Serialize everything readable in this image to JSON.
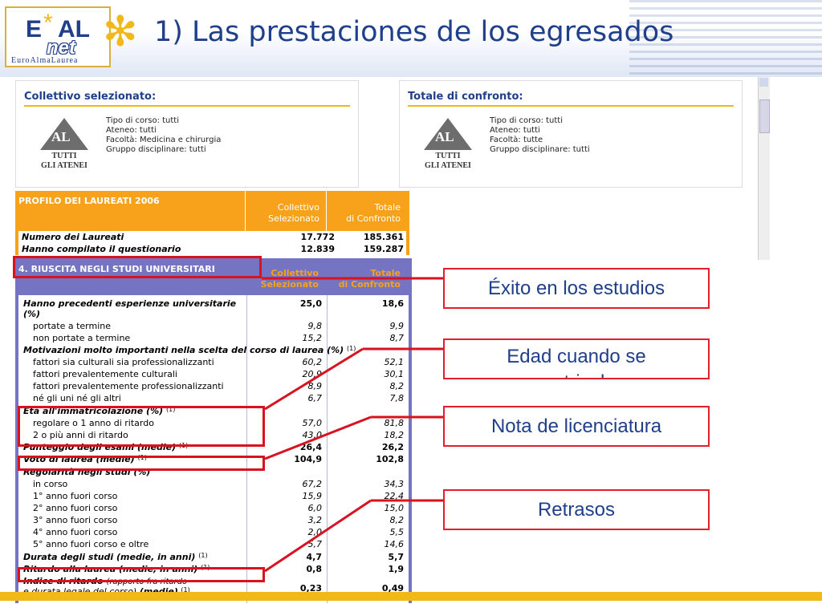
{
  "logo": {
    "top": "E*AL",
    "net": "net",
    "sub": "EuroAlmaLaurea"
  },
  "title": "1) Las prestaciones de los egresados",
  "collettivo": {
    "title": "Collettivo selezionato:",
    "logo_text": "AL",
    "logo_caption_1": "TUTTI",
    "logo_caption_2": "GLI ATENEI",
    "lines": [
      "Tipo di corso: tutti",
      "Ateneo: tutti",
      "Facoltà: Medicina e chirurgia",
      "Gruppo disciplinare: tutti"
    ]
  },
  "confronto": {
    "title": "Totale di confronto:",
    "logo_text": "AL",
    "logo_caption_1": "TUTTI",
    "logo_caption_2": "GLI ATENEI",
    "lines": [
      "Tipo di corso: tutti",
      "Ateneo: tutti",
      "Facoltà: tutte",
      "Gruppo disciplinare: tutti"
    ]
  },
  "profile": {
    "title": "PROFILO DEI LAUREATI 2006",
    "col1": [
      "Collettivo",
      "Selezionato"
    ],
    "col2": [
      "Totale",
      "di Confronto"
    ],
    "rows": [
      {
        "label": "Numero dei Laureati",
        "v1": "17.772",
        "v2": "185.361"
      },
      {
        "label": "Hanno compilato il questionario",
        "v1": "12.839",
        "v2": "159.287"
      }
    ]
  },
  "section4": {
    "title": "4. RIUSCITA NEGLI STUDI UNIVERSITARI",
    "col1": [
      "Collettivo",
      "Selezionato"
    ],
    "col2": [
      "Totale",
      "di Confronto"
    ],
    "rows": [
      {
        "label": "Hanno precedenti esperienze universitarie",
        "v1": "25,0",
        "v2": "18,6"
      },
      {
        "label": "(%)",
        "v1": "",
        "v2": ""
      },
      {
        "label": "portate a termine",
        "v1": "9,8",
        "v2": "9,9"
      },
      {
        "label": "non portate a termine",
        "v1": "15,2",
        "v2": "8,7"
      },
      {
        "label": "Motivazioni molto importanti nella scelta del corso di laurea (%)",
        "note": "(1)",
        "v1": "",
        "v2": ""
      },
      {
        "label": "fattori sia culturali sia professionalizzanti",
        "v1": "60,2",
        "v2": "52,1"
      },
      {
        "label": "fattori prevalentemente culturali",
        "v1": "20,9",
        "v2": "30,1"
      },
      {
        "label": "fattori prevalentemente professionalizzanti",
        "v1": "8,9",
        "v2": "8,2"
      },
      {
        "label": "né gli uni né gli altri",
        "v1": "6,7",
        "v2": "7,8"
      },
      {
        "label": "Età all'immatricolazione (%)",
        "note": "(1)",
        "v1": "",
        "v2": ""
      },
      {
        "label": "regolare o 1 anno di ritardo",
        "v1": "57,0",
        "v2": "81,8"
      },
      {
        "label": "2 o più anni di ritardo",
        "v1": "43,0",
        "v2": "18,2"
      },
      {
        "label": "Punteggio degli esami (medie)",
        "note": "(1)",
        "v1": "26,4",
        "v2": "26,2"
      },
      {
        "label": "Voto di laurea (medie)",
        "note": "(1)",
        "v1": "104,9",
        "v2": "102,8"
      },
      {
        "label": "Regolarità negli studi (%)",
        "v1": "",
        "v2": ""
      },
      {
        "label": "in corso",
        "v1": "67,2",
        "v2": "34,3"
      },
      {
        "label": "1° anno fuori corso",
        "v1": "15,9",
        "v2": "22,4"
      },
      {
        "label": "2° anno fuori corso",
        "v1": "6,0",
        "v2": "15,0"
      },
      {
        "label": "3° anno fuori corso",
        "v1": "3,2",
        "v2": "8,2"
      },
      {
        "label": "4° anno fuori corso",
        "v1": "2,0",
        "v2": "5,5"
      },
      {
        "label": "5° anno fuori corso e oltre",
        "v1": "5,7",
        "v2": "14,6"
      },
      {
        "label": "Durata degli studi (medie, in anni)",
        "note": "(1)",
        "v1": "4,7",
        "v2": "5,7"
      },
      {
        "label": "Ritardo alla laurea (medie, in anni)",
        "note": "(1)",
        "v1": "0,8",
        "v2": "1,9"
      },
      {
        "label": "Indice di ritardo",
        "extra": "(rapporto fra ritardo",
        "v1": "",
        "v2": ""
      },
      {
        "label": "e durata legale del corso)",
        "extra2": "(medie)",
        "note": "(1)",
        "v1": "0,23",
        "v2": "0,49"
      }
    ]
  },
  "callouts": {
    "exito": "Éxito en los estudios",
    "edad_1": "Edad cuando se",
    "edad_2": "matricula",
    "nota": "Nota de licenciatura",
    "retrasos": "Retrasos"
  },
  "colors": {
    "title_blue": "#1f3f8b",
    "orange": "#f7a21a",
    "purple": "#7474c2",
    "callout_red": "#e0202a",
    "yellow": "#f1b819"
  }
}
